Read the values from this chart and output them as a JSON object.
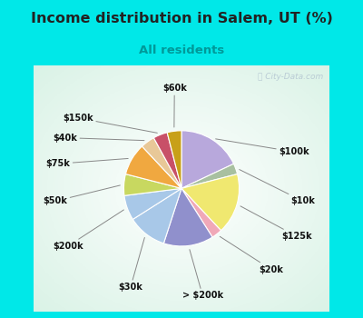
{
  "title": "Income distribution in Salem, UT (%)",
  "subtitle": "All residents",
  "watermark": "ⓘ City-Data.com",
  "labels": [
    "$100k",
    "$10k",
    "$125k",
    "$20k",
    "> $200k",
    "$30k",
    "$200k",
    "$50k",
    "$75k",
    "$40k",
    "$150k",
    "$60k"
  ],
  "values": [
    18,
    3,
    17,
    3,
    14,
    11,
    7,
    6,
    9,
    4,
    4,
    4
  ],
  "slice_colors": [
    "#b8a8dc",
    "#a8c0a0",
    "#f0e870",
    "#f0a8b8",
    "#9090cc",
    "#a8c8e8",
    "#a8c8e8",
    "#c8d860",
    "#f0a840",
    "#e8c898",
    "#c85068",
    "#c8a018"
  ],
  "title_color": "#222222",
  "subtitle_color": "#009999",
  "fig_bg_color": "#00e8e8",
  "chart_bg_color": "#f0faf4",
  "startangle": 90
}
